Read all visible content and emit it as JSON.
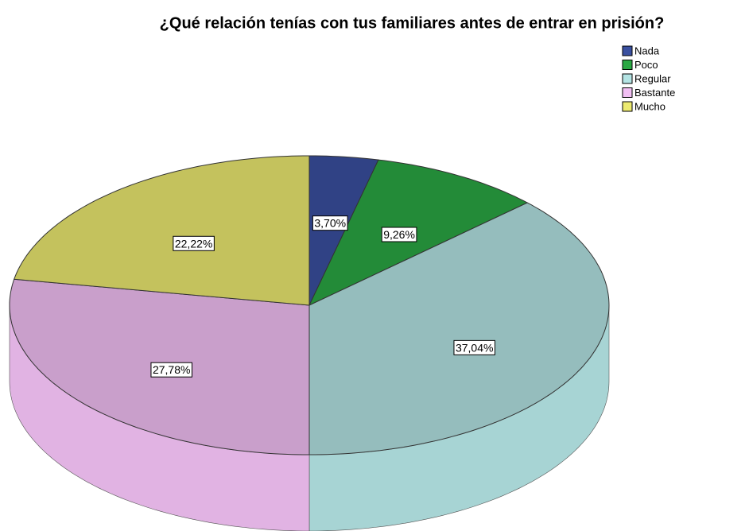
{
  "chart_data": {
    "type": "pie",
    "title": "¿Qué relación tenías con tus familiares antes de entrar en prisión?",
    "categories": [
      "Nada",
      "Poco",
      "Regular",
      "Bastante",
      "Mucho"
    ],
    "values": [
      3.7,
      9.26,
      37.04,
      27.78,
      22.22
    ],
    "value_labels": [
      "3,70%",
      "9,26%",
      "37,04%",
      "27,78%",
      "22,22%"
    ],
    "colors": [
      "#3a50a0",
      "#2aa843",
      "#b4e4e4",
      "#f2c0f4",
      "#ecea70"
    ],
    "legend": "top-right"
  }
}
